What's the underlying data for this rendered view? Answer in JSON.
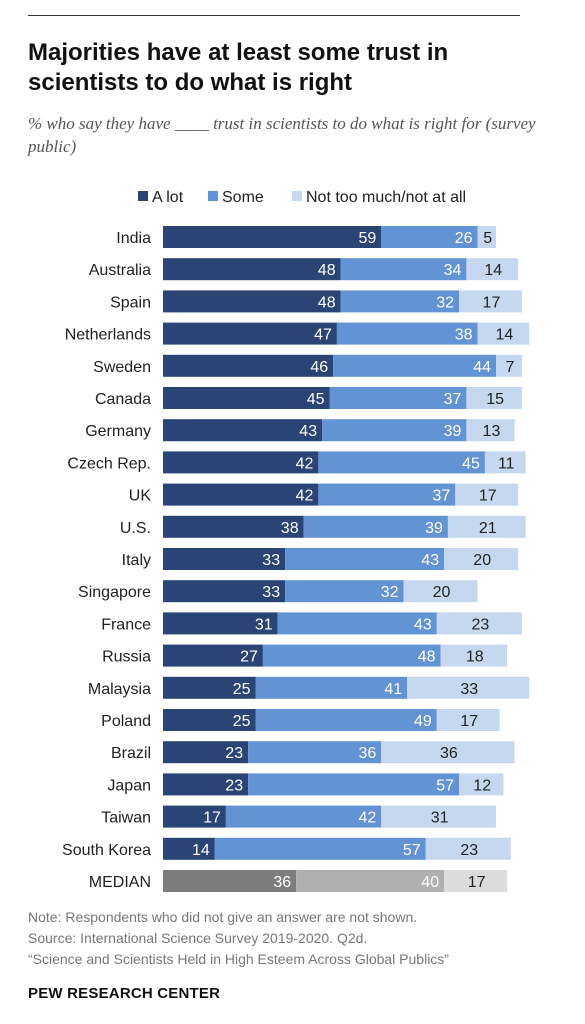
{
  "header": {
    "title": "Majorities have at least some trust in scientists to do what is right",
    "subtitle": "% who say they have ____ trust in scientists to do what is right for (survey public)"
  },
  "legend": {
    "items": [
      {
        "label": "A lot",
        "color": "#2b4476"
      },
      {
        "label": "Some",
        "color": "#6293d4"
      },
      {
        "label": "Not too much/not at all",
        "color": "#c6d8ef"
      }
    ]
  },
  "colors": {
    "median_a_lot": "#7d7d7d",
    "median_some": "#b0b0b0",
    "median_not": "#dcdcdc",
    "label_light": "#ffffff",
    "label_dark": "#222222"
  },
  "chart_data": {
    "type": "bar",
    "orientation": "horizontal",
    "stacked": true,
    "categories": [
      "India",
      "Australia",
      "Spain",
      "Netherlands",
      "Sweden",
      "Canada",
      "Germany",
      "Czech Rep.",
      "UK",
      "U.S.",
      "Italy",
      "Singapore",
      "France",
      "Russia",
      "Malaysia",
      "Poland",
      "Brazil",
      "Japan",
      "Taiwan",
      "South Korea",
      "MEDIAN"
    ],
    "series": [
      {
        "name": "A lot",
        "values": [
          59,
          48,
          48,
          47,
          46,
          45,
          43,
          42,
          42,
          38,
          33,
          33,
          31,
          27,
          25,
          25,
          23,
          23,
          17,
          14,
          36
        ]
      },
      {
        "name": "Some",
        "values": [
          26,
          34,
          32,
          38,
          44,
          37,
          39,
          45,
          37,
          39,
          43,
          32,
          43,
          48,
          41,
          49,
          36,
          57,
          42,
          57,
          40
        ]
      },
      {
        "name": "Not too much/not at all",
        "values": [
          5,
          14,
          17,
          14,
          7,
          15,
          13,
          11,
          17,
          21,
          20,
          20,
          23,
          18,
          33,
          17,
          36,
          12,
          31,
          23,
          17
        ]
      }
    ],
    "xlim": [
      0,
      100
    ],
    "legend_position": "top",
    "grid": false
  },
  "footer": {
    "note": "Note: Respondents who did not give an answer are not shown.",
    "source": "Source: International Science Survey 2019-2020. Q2d.",
    "report": "“Science and Scientists Held in High Esteem Across Global Publics”",
    "brand": "PEW RESEARCH CENTER"
  }
}
